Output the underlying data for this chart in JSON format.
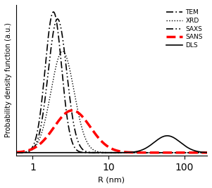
{
  "xlabel": "R (nm)",
  "ylabel": "Probability density function (a.u.)",
  "xlim_log": [
    0.6,
    200
  ],
  "ylim": [
    0,
    1.05
  ],
  "legend_entries": [
    "TEM",
    "XRD",
    "SAXS",
    "SANS",
    "DLS"
  ],
  "line_styles": [
    {
      "color": "#000000",
      "lw": 1.2,
      "linestyle": "dashdot",
      "label": "TEM"
    },
    {
      "color": "#000000",
      "lw": 1.0,
      "linestyle": "dotted",
      "label": "XRD"
    },
    {
      "color": "#000000",
      "lw": 1.2,
      "linestyle": [
        0,
        [
          8,
          3,
          1,
          3,
          1,
          3
        ]
      ],
      "label": "SAXS"
    },
    {
      "color": "#ff0000",
      "lw": 2.5,
      "linestyle": "dashed",
      "label": "SANS"
    },
    {
      "color": "#000000",
      "lw": 1.2,
      "linestyle": "solid",
      "label": "DLS"
    }
  ]
}
